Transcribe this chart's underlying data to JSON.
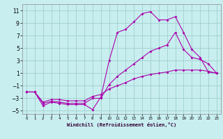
{
  "title": "",
  "xlabel": "Windchill (Refroidissement éolien,°C)",
  "bg_color": "#c8eef0",
  "grid_color": "#a0d0cc",
  "line_color": "#aa00aa",
  "xlim": [
    -0.5,
    23.5
  ],
  "ylim": [
    -5.5,
    12.0
  ],
  "xticks": [
    0,
    1,
    2,
    3,
    4,
    5,
    6,
    7,
    8,
    9,
    10,
    11,
    12,
    13,
    14,
    15,
    16,
    17,
    18,
    19,
    20,
    21,
    22,
    23
  ],
  "yticks": [
    -5,
    -3,
    -1,
    1,
    3,
    5,
    7,
    9,
    11
  ],
  "line1_x": [
    0,
    1,
    2,
    3,
    4,
    5,
    6,
    7,
    8,
    9,
    10,
    11,
    12,
    13,
    14,
    15,
    16,
    17,
    18,
    19,
    20,
    21,
    22,
    23
  ],
  "line1_y": [
    -2.0,
    -2.0,
    -4.2,
    -3.6,
    -3.8,
    -4.0,
    -4.0,
    -4.0,
    -4.8,
    -2.8,
    3.0,
    7.5,
    8.0,
    9.2,
    10.5,
    10.8,
    9.5,
    9.5,
    10.0,
    7.5,
    4.8,
    3.5,
    1.2,
    1.0
  ],
  "line2_x": [
    0,
    1,
    2,
    3,
    4,
    5,
    6,
    7,
    8,
    9,
    10,
    11,
    12,
    13,
    14,
    15,
    16,
    17,
    18,
    19,
    20,
    21,
    22,
    23
  ],
  "line2_y": [
    -2.0,
    -2.0,
    -3.8,
    -3.5,
    -3.6,
    -3.8,
    -3.8,
    -3.8,
    -3.0,
    -3.0,
    -0.8,
    0.5,
    1.5,
    2.5,
    3.5,
    4.5,
    5.0,
    5.5,
    7.5,
    4.8,
    3.5,
    3.2,
    2.5,
    1.0
  ],
  "line3_x": [
    0,
    1,
    2,
    3,
    4,
    5,
    6,
    7,
    8,
    9,
    10,
    11,
    12,
    13,
    14,
    15,
    16,
    17,
    18,
    19,
    20,
    21,
    22,
    23
  ],
  "line3_y": [
    -2.0,
    -2.0,
    -3.6,
    -3.2,
    -3.2,
    -3.4,
    -3.4,
    -3.4,
    -2.7,
    -2.4,
    -1.5,
    -1.0,
    -0.5,
    0.1,
    0.5,
    0.8,
    1.0,
    1.2,
    1.5,
    1.5,
    1.5,
    1.5,
    1.3,
    1.0
  ]
}
